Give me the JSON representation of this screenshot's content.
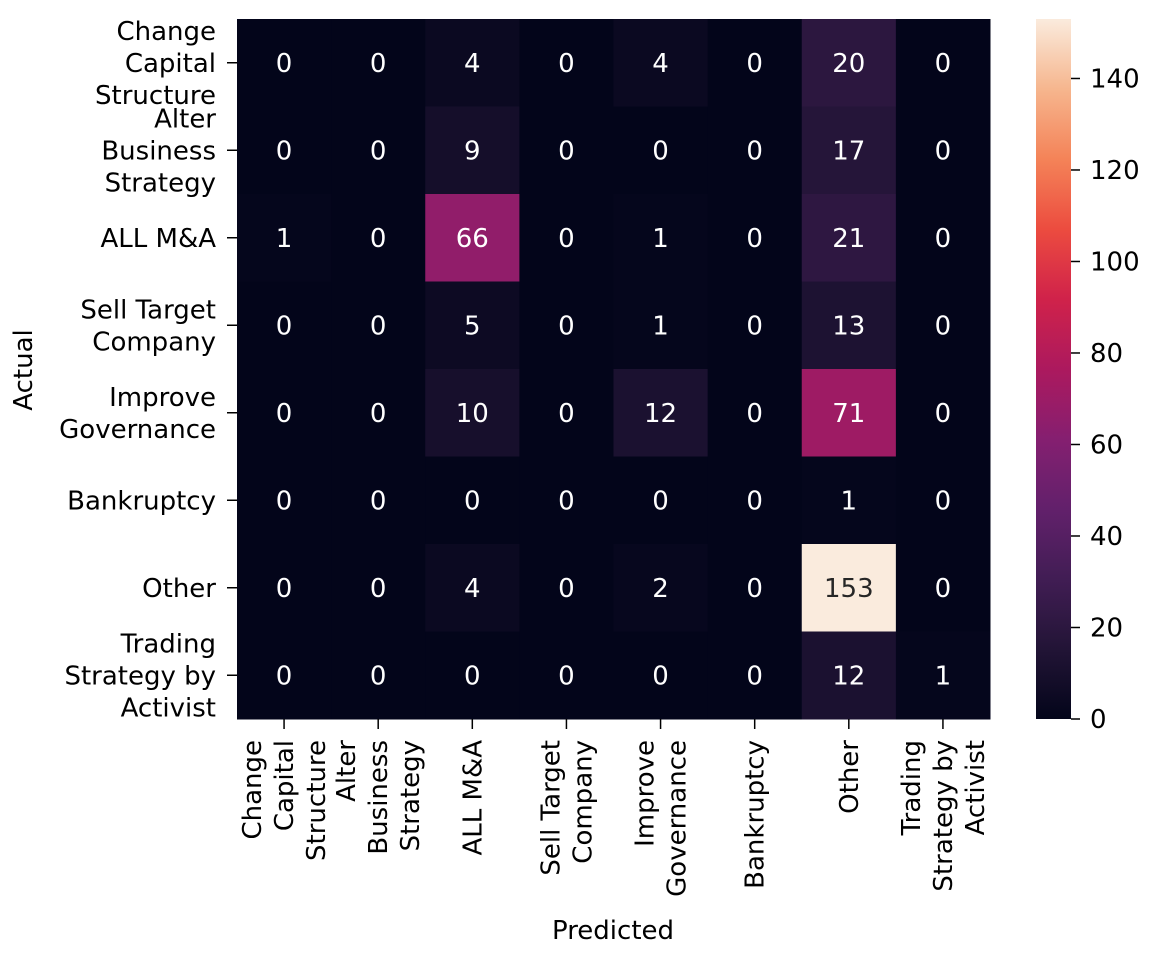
{
  "chart_data": {
    "type": "heatmap",
    "xlabel": "Predicted",
    "ylabel": "Actual",
    "categories": [
      "Change Capital Structure",
      "Alter Business Strategy",
      "ALL M&A",
      "Sell Target Company",
      "Improve Governance",
      "Bankruptcy",
      "Other",
      "Trading Strategy by Activist"
    ],
    "x_tick_lines": [
      [
        "Change",
        "Capital",
        "Structure"
      ],
      [
        "Alter",
        "Business",
        "Strategy"
      ],
      [
        "ALL M&A"
      ],
      [
        "Sell Target",
        "Company"
      ],
      [
        "Improve",
        "Governance"
      ],
      [
        "Bankruptcy"
      ],
      [
        "Other"
      ],
      [
        "Trading",
        "Strategy by",
        "Activist"
      ]
    ],
    "y_tick_lines": [
      [
        "Change",
        "Capital",
        "Structure"
      ],
      [
        "Alter",
        "Business",
        "Strategy"
      ],
      [
        "ALL M&A"
      ],
      [
        "Sell Target",
        "Company"
      ],
      [
        "Improve",
        "Governance"
      ],
      [
        "Bankruptcy"
      ],
      [
        "Other"
      ],
      [
        "Trading",
        "Strategy by",
        "Activist"
      ]
    ],
    "values": [
      [
        0,
        0,
        4,
        0,
        4,
        0,
        20,
        0
      ],
      [
        0,
        0,
        9,
        0,
        0,
        0,
        17,
        0
      ],
      [
        1,
        0,
        66,
        0,
        1,
        0,
        21,
        0
      ],
      [
        0,
        0,
        5,
        0,
        1,
        0,
        13,
        0
      ],
      [
        0,
        0,
        10,
        0,
        12,
        0,
        71,
        0
      ],
      [
        0,
        0,
        0,
        0,
        0,
        0,
        1,
        0
      ],
      [
        0,
        0,
        4,
        0,
        2,
        0,
        153,
        0
      ],
      [
        0,
        0,
        0,
        0,
        0,
        0,
        12,
        1
      ]
    ],
    "colorbar": {
      "min": 0,
      "max": 153,
      "ticks": [
        "0",
        "20",
        "40",
        "60",
        "80",
        "100",
        "120",
        "140"
      ],
      "colormap": "rocket"
    },
    "grid": false,
    "annotations": "cell counts"
  }
}
